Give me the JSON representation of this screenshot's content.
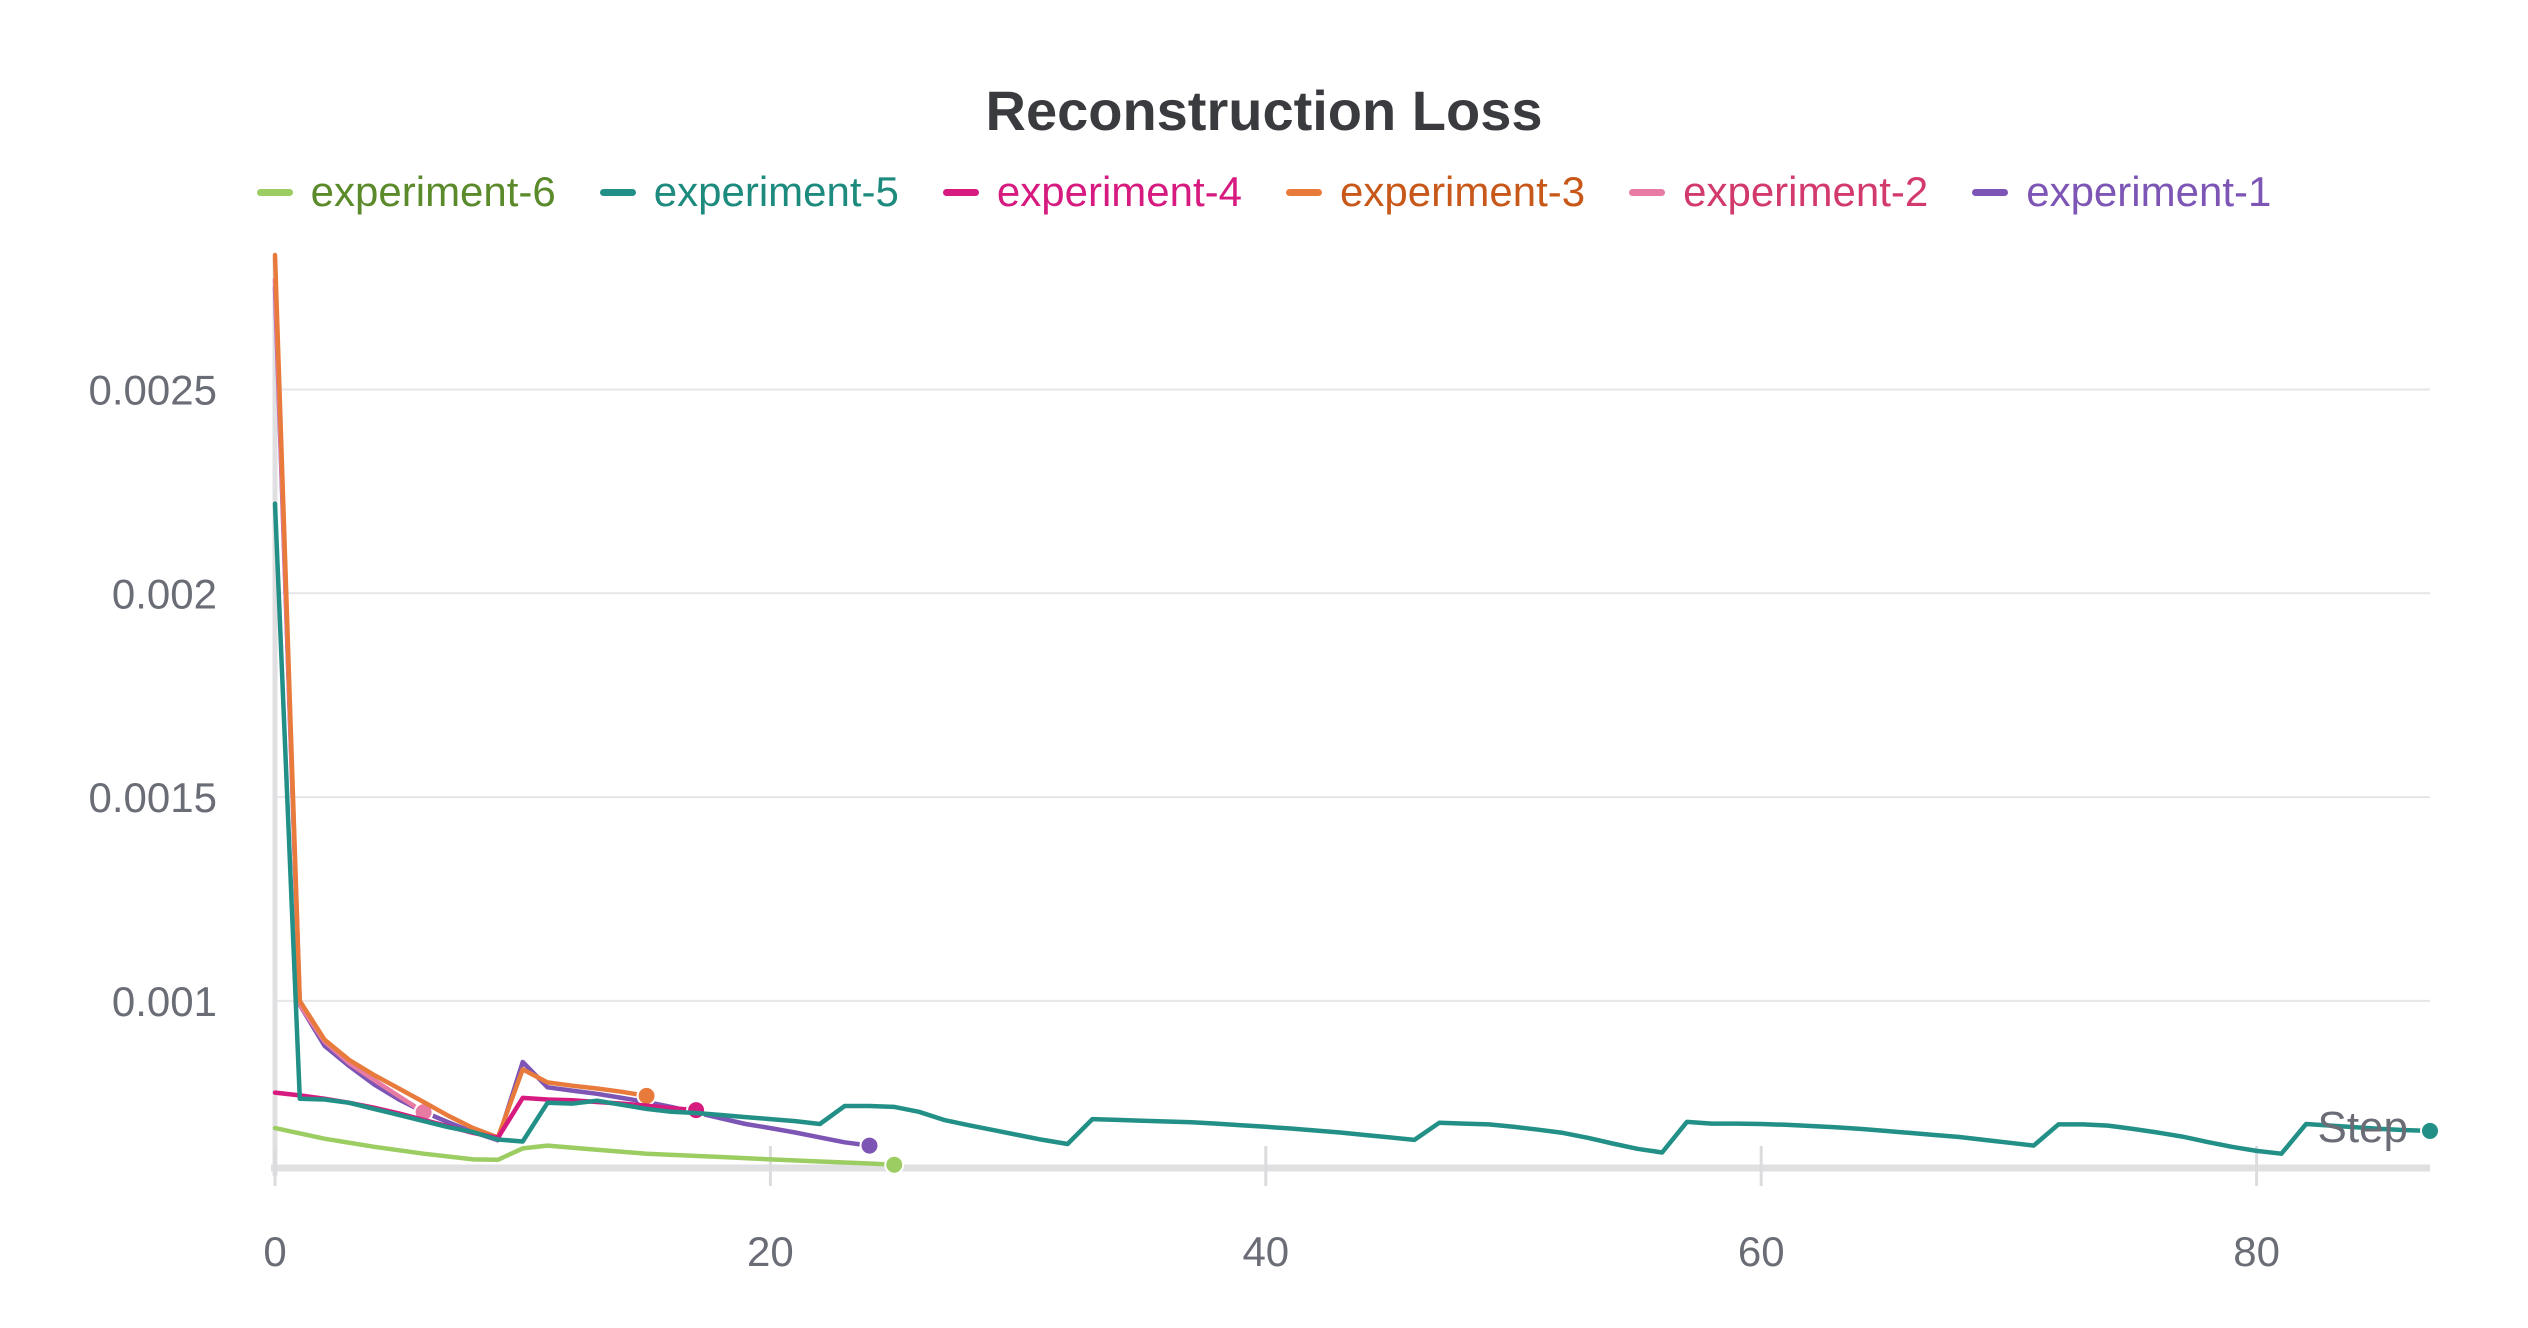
{
  "chart_data": {
    "type": "line",
    "title": "Reconstruction Loss",
    "xlabel": "Step",
    "ylabel": "",
    "xlim": [
      0,
      87
    ],
    "ylim": [
      0.00059,
      0.00283
    ],
    "xticks": [
      "0",
      "20",
      "40",
      "60",
      "80"
    ],
    "xtick_values": [
      0,
      20,
      40,
      60,
      80
    ],
    "yticks": [
      "0.001",
      "0.0015",
      "0.002",
      "0.0025"
    ],
    "ytick_values": [
      0.001,
      0.0015,
      0.002,
      0.0025
    ],
    "grid": true,
    "legend_position": "top",
    "series": [
      {
        "name": "experiment-6",
        "color": "#9ccd62",
        "text_color": "#5a8a2a",
        "x": [
          0,
          2,
          4,
          6,
          8,
          9,
          10,
          11,
          13,
          15,
          18,
          20,
          22,
          24,
          25
        ],
        "y": [
          0.000688,
          0.000662,
          0.000642,
          0.000625,
          0.000611,
          0.00061,
          0.000638,
          0.000645,
          0.000635,
          0.000625,
          0.000617,
          0.000611,
          0.000606,
          0.000601,
          0.000598
        ]
      },
      {
        "name": "experiment-5",
        "color": "#239087",
        "text_color": "#1d8a7e",
        "x": [
          0,
          1,
          2,
          3,
          4,
          5,
          6,
          7,
          8,
          9,
          10,
          11,
          12,
          13,
          14,
          15,
          16,
          17,
          18,
          19,
          20,
          21,
          22,
          23,
          24,
          25,
          26,
          27,
          28,
          29,
          30,
          31,
          32,
          33,
          34,
          35,
          36,
          37,
          38,
          39,
          40,
          41,
          42,
          43,
          44,
          45,
          46,
          47,
          48,
          49,
          50,
          51,
          52,
          53,
          54,
          55,
          56,
          57,
          58,
          59,
          60,
          61,
          62,
          63,
          64,
          65,
          66,
          67,
          68,
          69,
          70,
          71,
          72,
          73,
          74,
          75,
          76,
          77,
          78,
          79,
          80,
          81,
          82,
          83,
          84,
          85,
          86,
          87
        ],
        "y": [
          0.00222,
          0.00076,
          0.000758,
          0.00075,
          0.000735,
          0.00072,
          0.000705,
          0.00069,
          0.000678,
          0.00066,
          0.000655,
          0.00075,
          0.000748,
          0.000755,
          0.000745,
          0.000735,
          0.000728,
          0.000725,
          0.00072,
          0.000715,
          0.00071,
          0.000705,
          0.000698,
          0.000742,
          0.000742,
          0.00074,
          0.000728,
          0.000708,
          0.000695,
          0.000683,
          0.000671,
          0.000659,
          0.000649,
          0.00071,
          0.000708,
          0.000706,
          0.000704,
          0.000702,
          0.000699,
          0.000695,
          0.000691,
          0.000687,
          0.000682,
          0.000677,
          0.000671,
          0.000665,
          0.000659,
          0.000701,
          0.000699,
          0.000697,
          0.000691,
          0.000684,
          0.000676,
          0.000664,
          0.00065,
          0.000637,
          0.000628,
          0.000703,
          0.000699,
          0.000699,
          0.000698,
          0.000696,
          0.000693,
          0.00069,
          0.000686,
          0.000681,
          0.000676,
          0.000671,
          0.000666,
          0.000659,
          0.000652,
          0.000645,
          0.000697,
          0.000697,
          0.000694,
          0.000686,
          0.000677,
          0.000667,
          0.000654,
          0.000642,
          0.000632,
          0.000625,
          0.000698,
          0.000694,
          0.00069,
          0.000686,
          0.000683,
          0.000681
        ]
      },
      {
        "name": "experiment-4",
        "color": "#d61a7f",
        "text_color": "#d61a7f",
        "x": [
          0,
          1,
          2,
          3,
          4,
          5,
          6,
          7,
          8,
          9,
          10,
          11,
          12,
          13,
          14,
          15,
          16,
          17
        ],
        "y": [
          0.000775,
          0.000768,
          0.00076,
          0.00075,
          0.000738,
          0.000724,
          0.000708,
          0.000692,
          0.000676,
          0.000664,
          0.000762,
          0.000758,
          0.000756,
          0.000752,
          0.000748,
          0.000743,
          0.000737,
          0.000732
        ]
      },
      {
        "name": "experiment-3",
        "color": "#e87b3c",
        "text_color": "#c8581a",
        "x": [
          0,
          1,
          2,
          3,
          4,
          5,
          6,
          7,
          8,
          9,
          10,
          11,
          12,
          13,
          14,
          15
        ],
        "y": [
          0.00283,
          0.001,
          0.000905,
          0.000855,
          0.000818,
          0.000785,
          0.000752,
          0.000718,
          0.000688,
          0.000665,
          0.000832,
          0.0008,
          0.000792,
          0.000785,
          0.000777,
          0.000767
        ]
      },
      {
        "name": "experiment-2",
        "color": "#e77ba3",
        "text_color": "#d33a6c",
        "x": [
          0,
          1,
          2,
          3,
          4,
          5,
          6
        ],
        "y": [
          0.00277,
          0.00099,
          0.0009,
          0.000847,
          0.000806,
          0.000766,
          0.000727
        ]
      },
      {
        "name": "experiment-1",
        "color": "#7d55b5",
        "text_color": "#7d55b5",
        "x": [
          0,
          1,
          2,
          3,
          4,
          5,
          6,
          7,
          8,
          9,
          10,
          11,
          12,
          13,
          14,
          15,
          16,
          17,
          18,
          19,
          20,
          21,
          22,
          23,
          24
        ],
        "y": [
          0.00275,
          0.00099,
          0.00089,
          0.00084,
          0.000795,
          0.000758,
          0.000728,
          0.000702,
          0.000678,
          0.000658,
          0.00085,
          0.000788,
          0.00078,
          0.000772,
          0.000762,
          0.000752,
          0.00074,
          0.000726,
          0.000712,
          0.000698,
          0.000688,
          0.000677,
          0.000665,
          0.000653,
          0.000645
        ]
      }
    ]
  }
}
